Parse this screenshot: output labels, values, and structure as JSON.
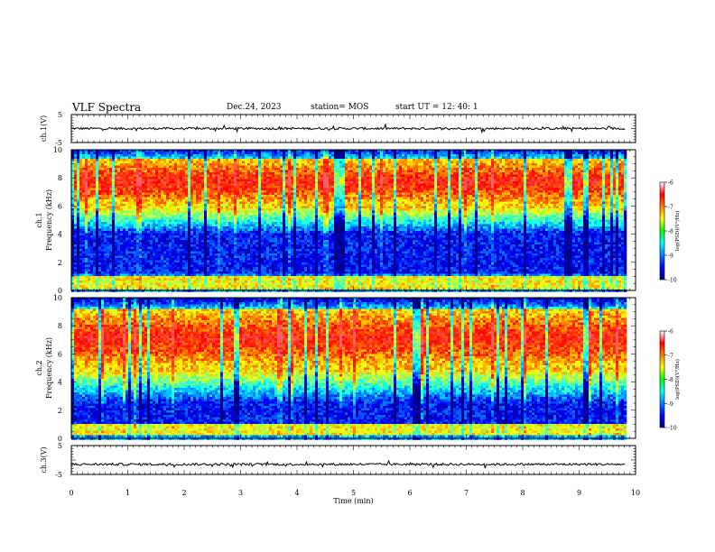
{
  "header": {
    "title": "VLF Spectra",
    "date": "Dec.24, 2023",
    "station": "station= MOS",
    "start": "start  UT =   12: 40: 1"
  },
  "chart_data": [
    {
      "type": "line",
      "panel": "ch1-waveform",
      "ylabel": "ch.1(V)",
      "yticks": [
        "5",
        "-5"
      ],
      "ylim": [
        -5,
        5
      ],
      "xlim": [
        0,
        10
      ],
      "data_extent_min": 9.83,
      "baseline_v": 0
    },
    {
      "type": "heatmap",
      "panel": "ch1-spectrogram",
      "ylabel": "ch.1\nFrequency (kHz)",
      "yticks": [
        "0",
        "2",
        "4",
        "6",
        "8",
        "10"
      ],
      "ylim_khz": [
        0,
        10
      ],
      "xlim_min": [
        0,
        10
      ],
      "data_extent_min": 9.83,
      "intense_bands_khz": [
        [
          6,
          9.4
        ],
        [
          0.1,
          1
        ]
      ],
      "quiet_band_khz": [
        1.2,
        4
      ],
      "colorbar": {
        "label": "log(PSD)(V²/Hz)",
        "ticks": [
          "-6",
          "-7",
          "-8",
          "-9",
          "-10"
        ],
        "range": [
          -10,
          -6
        ]
      }
    },
    {
      "type": "heatmap",
      "panel": "ch2-spectrogram",
      "ylabel": "ch.2\nFrequency (kHz)",
      "yticks": [
        "0",
        "2",
        "4",
        "6",
        "8",
        "10"
      ],
      "ylim_khz": [
        0,
        10
      ],
      "xlim_min": [
        0,
        10
      ],
      "data_extent_min": 9.83,
      "intense_bands_khz": [
        [
          5,
          9.2
        ],
        [
          0.2,
          1
        ]
      ],
      "quiet_band_khz": [
        1,
        2.5
      ],
      "colorbar": {
        "label": "log(PSD)(V²/Hz)",
        "ticks": [
          "-6",
          "-7",
          "-8",
          "-9",
          "-10"
        ],
        "range": [
          -10,
          -6
        ]
      }
    },
    {
      "type": "line",
      "panel": "ch3-waveform",
      "ylabel": "ch.3(V)",
      "yticks": [
        "5",
        "-5"
      ],
      "ylim": [
        -5,
        5
      ],
      "xlim": [
        0,
        10
      ],
      "data_extent_min": 9.83,
      "baseline_v": -1.5,
      "xlabel": "Time (min)",
      "xticks": [
        "0",
        "1",
        "2",
        "3",
        "4",
        "5",
        "6",
        "7",
        "8",
        "9",
        "10"
      ]
    }
  ]
}
